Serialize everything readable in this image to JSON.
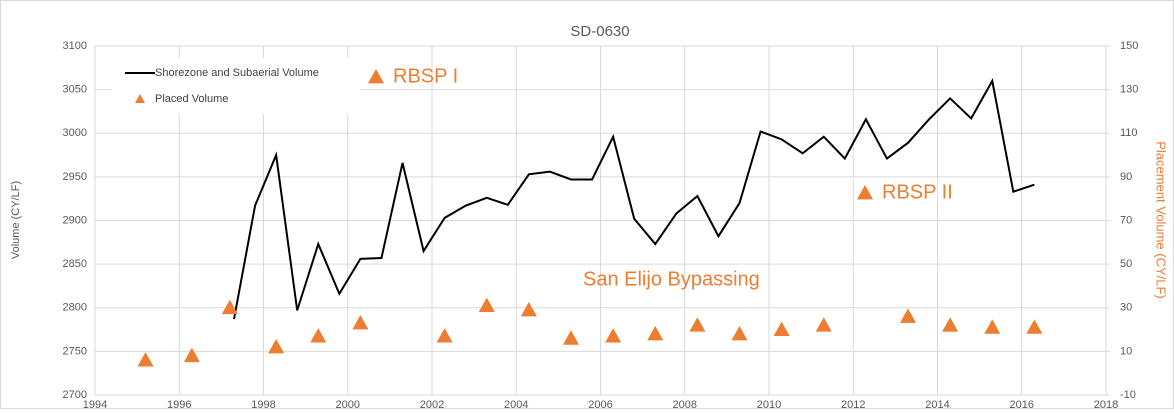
{
  "chart_data": {
    "type": "line",
    "title": "SD-0630",
    "ylabel": "Volume (CY/LF)",
    "y2label": "Placement Volume (CY/LF)",
    "xlim": [
      1994,
      2018
    ],
    "xticks": [
      1994,
      1996,
      1998,
      2000,
      2002,
      2004,
      2006,
      2008,
      2010,
      2012,
      2014,
      2016,
      2018
    ],
    "ylim": [
      2700,
      3100
    ],
    "yticks": [
      2700,
      2750,
      2800,
      2850,
      2900,
      2950,
      3000,
      3050,
      3100
    ],
    "y2lim": [
      -10,
      150
    ],
    "y2ticks": [
      -10,
      10,
      30,
      50,
      70,
      90,
      110,
      130,
      150
    ],
    "grid": true,
    "legend": "upper left",
    "series": [
      {
        "name": "Shorezone and Subaerial Volume",
        "color": "#000000",
        "x": [
          1997.3,
          1997.8,
          1998.3,
          1998.8,
          1999.3,
          1999.8,
          2000.3,
          2000.8,
          2001.3,
          2001.8,
          2002.3,
          2002.8,
          2003.3,
          2003.8,
          2004.3,
          2004.8,
          2005.3,
          2005.8,
          2006.3,
          2006.8,
          2007.3,
          2007.8,
          2008.3,
          2008.8,
          2009.3,
          2009.8,
          2010.3,
          2010.8,
          2011.3,
          2011.8,
          2012.3,
          2012.8,
          2013.3,
          2013.8,
          2014.3,
          2014.8,
          2015.3,
          2015.8,
          2016.3
        ],
        "values": [
          2787,
          2917,
          2975,
          2797,
          2873,
          2816,
          2856,
          2857,
          2966,
          2865,
          2903,
          2917,
          2926,
          2918,
          2953,
          2956,
          2947,
          2947,
          2996,
          2902,
          2873,
          2908,
          2928,
          2882,
          2920,
          3002,
          2993,
          2977,
          2996,
          2971,
          3016,
          2971,
          2989,
          3016,
          3040,
          3017,
          3060,
          2933,
          2941
        ]
      },
      {
        "name": "Placed Volume",
        "color": "#ed7d31",
        "axis": "y2",
        "marker": "triangle",
        "x": [
          1995.2,
          1996.3,
          1997.2,
          1998.3,
          1999.3,
          2000.3,
          2002.3,
          2003.3,
          2004.3,
          2005.3,
          2006.3,
          2007.3,
          2008.3,
          2009.3,
          2010.3,
          2011.3,
          2013.3,
          2014.3,
          2015.3,
          2016.3
        ],
        "values": [
          6,
          8,
          30,
          12,
          17,
          23,
          17,
          31,
          29,
          16,
          17,
          18,
          22,
          18,
          20,
          22,
          26,
          22,
          21,
          21
        ]
      }
    ],
    "annotations": [
      "RBSP I",
      "RBSP II",
      "San Elijo Bypassing"
    ]
  }
}
